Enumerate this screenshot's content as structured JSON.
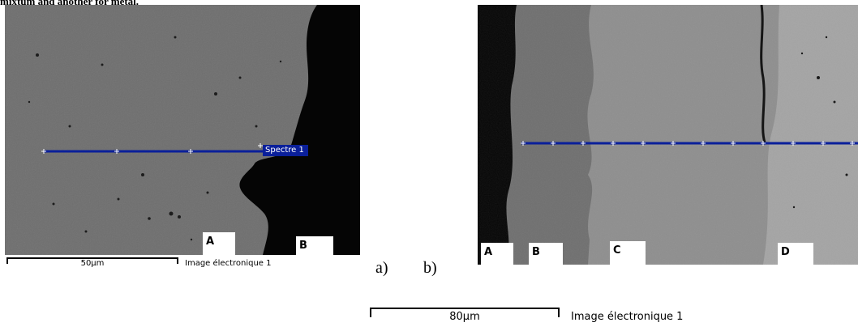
{
  "caption": "mixtum and another for metal.",
  "panel_a": {
    "letter": "a)",
    "spectrum_label": "Spectre 1",
    "regions": [
      "A",
      "B"
    ],
    "scale_text": "50µm",
    "image_label": "Image électronique 1"
  },
  "panel_b": {
    "letter": "b)",
    "regions": [
      "A",
      "B",
      "C",
      "D"
    ],
    "scale_text": "80µm",
    "image_label": "Image électronique 1"
  },
  "colors": {
    "line": "#0a1f9a",
    "matrix_grey": "#6e6e6e",
    "dark_void": "#050505",
    "scale": "#000000"
  }
}
